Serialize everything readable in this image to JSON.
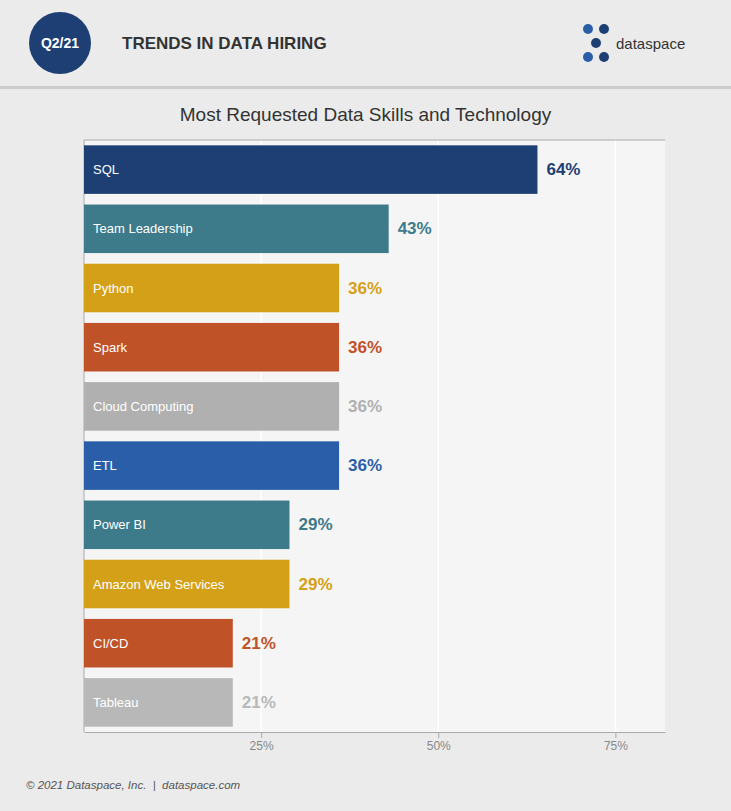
{
  "chart_data": {
    "type": "bar",
    "orientation": "horizontal",
    "title": "Most Requested Data Skills and Technology",
    "subtitle": "TRENDS IN DATA HIRING",
    "annotations": [
      "Q2/21",
      "dataspace",
      "© 2021 Dataspace, Inc.  |  dataspace.com"
    ],
    "categories": [
      "SQL",
      "Team Leadership",
      "Python",
      "Spark",
      "Cloud Computing",
      "ETL",
      "Power BI",
      "Amazon Web Services",
      "CI/CD",
      "Tableau"
    ],
    "values": [
      64,
      43,
      36,
      36,
      36,
      36,
      29,
      29,
      21,
      21
    ],
    "value_labels": [
      "64%",
      "43%",
      "36%",
      "36%",
      "36%",
      "36%",
      "29%",
      "29%",
      "21%",
      "21%"
    ],
    "colors": [
      "#1e3f73",
      "#3d7a8a",
      "#d4a017",
      "#c05228",
      "#b0b0b0",
      "#2b5ea8",
      "#3d7a8a",
      "#d4a017",
      "#c05228",
      "#b8b8b8"
    ],
    "xlim": [
      0,
      82
    ],
    "xticks": [
      {
        "value": 25,
        "label": "25%"
      },
      {
        "value": 50,
        "label": "50%"
      },
      {
        "value": 75,
        "label": "75%"
      }
    ],
    "grid": true,
    "data_labels": true
  }
}
